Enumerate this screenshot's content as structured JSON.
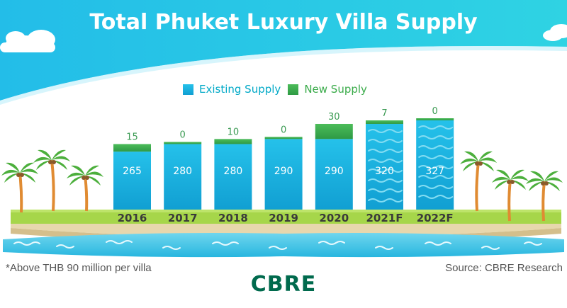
{
  "title": "Total Phuket Luxury Villa Supply",
  "legend": [
    {
      "label": "Existing Supply",
      "color": "#1cb2dd"
    },
    {
      "label": "New Supply",
      "color": "#3aab4a"
    }
  ],
  "footnote": "*Above THB 90 million per villa",
  "source": "Source: CBRE Research",
  "brand": "CBRE",
  "colors": {
    "existing": "#1cb2dd",
    "new_supply": "#3aab4a",
    "forecast_wave": "#82dcf2",
    "value_label_new": "#3a9a52",
    "value_label_existing": "#ffffff",
    "category_label": "#3a3a3a",
    "title": "#ffffff",
    "brand": "#006a4d"
  },
  "chart_data": {
    "type": "bar",
    "stacked": true,
    "categories": [
      "2016",
      "2017",
      "2018",
      "2019",
      "2020",
      "2021F",
      "2022F"
    ],
    "series": [
      {
        "name": "Existing Supply",
        "values": [
          265,
          280,
          280,
          290,
          290,
          320,
          327
        ]
      },
      {
        "name": "New Supply",
        "values": [
          15,
          0,
          10,
          0,
          30,
          7,
          0
        ]
      }
    ],
    "forecast_categories": [
      "2021F",
      "2022F"
    ],
    "title": "Total Phuket Luxury Villa Supply",
    "xlabel": "",
    "ylabel": "",
    "legend_position": "top-center",
    "grid": false
  }
}
